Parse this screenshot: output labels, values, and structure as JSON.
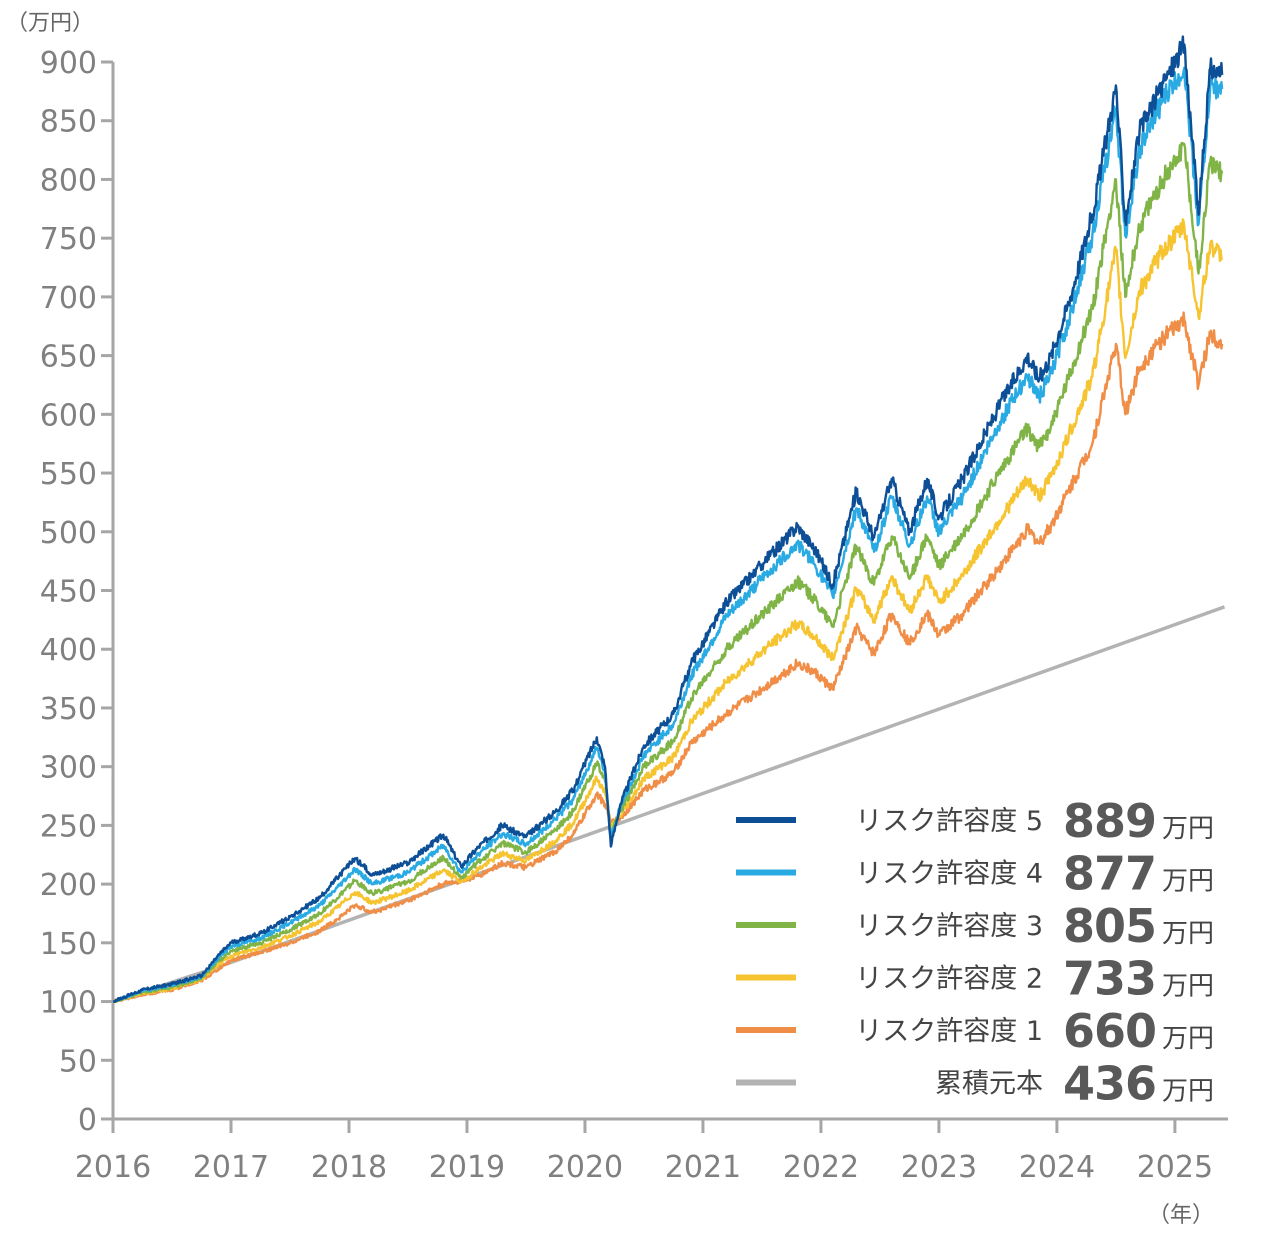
{
  "chart_data": {
    "type": "line",
    "y_unit": "（万円）",
    "x_unit": "（年）",
    "ylim": [
      0,
      900
    ],
    "xlim": [
      2016,
      2025.45
    ],
    "y_ticks": [
      0,
      50,
      100,
      150,
      200,
      250,
      300,
      350,
      400,
      450,
      500,
      550,
      600,
      650,
      700,
      750,
      800,
      850,
      900
    ],
    "x_ticks": [
      2016,
      2017,
      2018,
      2019,
      2020,
      2021,
      2022,
      2023,
      2024,
      2025
    ],
    "grid": false,
    "legend_position": "bottom-right",
    "value_unit": "万円",
    "series": [
      {
        "name": "リスク許容度 5",
        "final_value": "889",
        "color": "#0d4f96",
        "points": [
          [
            2016.0,
            100
          ],
          [
            2016.25,
            110
          ],
          [
            2016.5,
            115
          ],
          [
            2016.75,
            122
          ],
          [
            2016.9,
            140
          ],
          [
            2017.0,
            150
          ],
          [
            2017.25,
            158
          ],
          [
            2017.5,
            172
          ],
          [
            2017.75,
            188
          ],
          [
            2017.9,
            205
          ],
          [
            2018.05,
            222
          ],
          [
            2018.2,
            208
          ],
          [
            2018.5,
            218
          ],
          [
            2018.8,
            242
          ],
          [
            2018.95,
            215
          ],
          [
            2019.1,
            232
          ],
          [
            2019.3,
            250
          ],
          [
            2019.5,
            240
          ],
          [
            2019.75,
            262
          ],
          [
            2019.9,
            280
          ],
          [
            2020.1,
            325
          ],
          [
            2020.17,
            300
          ],
          [
            2020.22,
            232
          ],
          [
            2020.3,
            268
          ],
          [
            2020.5,
            318
          ],
          [
            2020.75,
            345
          ],
          [
            2020.9,
            388
          ],
          [
            2021.2,
            440
          ],
          [
            2021.5,
            472
          ],
          [
            2021.8,
            505
          ],
          [
            2021.95,
            485
          ],
          [
            2022.1,
            455
          ],
          [
            2022.3,
            535
          ],
          [
            2022.45,
            495
          ],
          [
            2022.6,
            545
          ],
          [
            2022.75,
            500
          ],
          [
            2022.9,
            545
          ],
          [
            2023.0,
            512
          ],
          [
            2023.2,
            545
          ],
          [
            2023.5,
            605
          ],
          [
            2023.75,
            650
          ],
          [
            2023.85,
            630
          ],
          [
            2023.95,
            650
          ],
          [
            2024.1,
            695
          ],
          [
            2024.3,
            770
          ],
          [
            2024.5,
            880
          ],
          [
            2024.58,
            765
          ],
          [
            2024.7,
            840
          ],
          [
            2024.9,
            882
          ],
          [
            2025.08,
            915
          ],
          [
            2025.2,
            770
          ],
          [
            2025.3,
            895
          ],
          [
            2025.4,
            889
          ]
        ]
      },
      {
        "name": "リスク許容度 4",
        "final_value": "877",
        "color": "#2aaae2",
        "points": [
          [
            2016.0,
            100
          ],
          [
            2016.25,
            109
          ],
          [
            2016.5,
            114
          ],
          [
            2016.75,
            121
          ],
          [
            2016.9,
            138
          ],
          [
            2017.0,
            147
          ],
          [
            2017.25,
            154
          ],
          [
            2017.5,
            167
          ],
          [
            2017.75,
            182
          ],
          [
            2017.9,
            197
          ],
          [
            2018.05,
            213
          ],
          [
            2018.2,
            200
          ],
          [
            2018.5,
            210
          ],
          [
            2018.8,
            233
          ],
          [
            2018.95,
            210
          ],
          [
            2019.1,
            226
          ],
          [
            2019.3,
            243
          ],
          [
            2019.5,
            234
          ],
          [
            2019.75,
            255
          ],
          [
            2019.9,
            272
          ],
          [
            2020.1,
            316
          ],
          [
            2020.17,
            295
          ],
          [
            2020.22,
            238
          ],
          [
            2020.3,
            266
          ],
          [
            2020.5,
            310
          ],
          [
            2020.75,
            336
          ],
          [
            2020.9,
            377
          ],
          [
            2021.2,
            428
          ],
          [
            2021.5,
            460
          ],
          [
            2021.8,
            490
          ],
          [
            2021.95,
            472
          ],
          [
            2022.1,
            445
          ],
          [
            2022.3,
            520
          ],
          [
            2022.45,
            483
          ],
          [
            2022.6,
            530
          ],
          [
            2022.75,
            488
          ],
          [
            2022.9,
            530
          ],
          [
            2023.0,
            500
          ],
          [
            2023.2,
            530
          ],
          [
            2023.5,
            590
          ],
          [
            2023.75,
            633
          ],
          [
            2023.85,
            615
          ],
          [
            2023.95,
            635
          ],
          [
            2024.1,
            680
          ],
          [
            2024.3,
            752
          ],
          [
            2024.5,
            860
          ],
          [
            2024.58,
            752
          ],
          [
            2024.7,
            825
          ],
          [
            2024.9,
            868
          ],
          [
            2025.08,
            895
          ],
          [
            2025.2,
            762
          ],
          [
            2025.3,
            880
          ],
          [
            2025.4,
            877
          ]
        ]
      },
      {
        "name": "リスク許容度 3",
        "final_value": "805",
        "color": "#80b446",
        "points": [
          [
            2016.0,
            100
          ],
          [
            2016.25,
            108
          ],
          [
            2016.5,
            112
          ],
          [
            2016.75,
            120
          ],
          [
            2016.9,
            135
          ],
          [
            2017.0,
            143
          ],
          [
            2017.25,
            150
          ],
          [
            2017.5,
            161
          ],
          [
            2017.75,
            175
          ],
          [
            2017.9,
            188
          ],
          [
            2018.05,
            203
          ],
          [
            2018.2,
            192
          ],
          [
            2018.5,
            202
          ],
          [
            2018.8,
            223
          ],
          [
            2018.95,
            205
          ],
          [
            2019.1,
            219
          ],
          [
            2019.3,
            235
          ],
          [
            2019.5,
            227
          ],
          [
            2019.75,
            246
          ],
          [
            2019.9,
            262
          ],
          [
            2020.1,
            303
          ],
          [
            2020.17,
            288
          ],
          [
            2020.22,
            244
          ],
          [
            2020.3,
            262
          ],
          [
            2020.5,
            300
          ],
          [
            2020.75,
            322
          ],
          [
            2020.9,
            358
          ],
          [
            2021.2,
            400
          ],
          [
            2021.5,
            430
          ],
          [
            2021.8,
            458
          ],
          [
            2021.95,
            442
          ],
          [
            2022.1,
            420
          ],
          [
            2022.3,
            488
          ],
          [
            2022.45,
            455
          ],
          [
            2022.6,
            496
          ],
          [
            2022.75,
            460
          ],
          [
            2022.9,
            496
          ],
          [
            2023.0,
            470
          ],
          [
            2023.2,
            497
          ],
          [
            2023.5,
            548
          ],
          [
            2023.75,
            588
          ],
          [
            2023.85,
            572
          ],
          [
            2023.95,
            590
          ],
          [
            2024.1,
            630
          ],
          [
            2024.3,
            690
          ],
          [
            2024.5,
            800
          ],
          [
            2024.58,
            700
          ],
          [
            2024.7,
            760
          ],
          [
            2024.9,
            800
          ],
          [
            2025.08,
            830
          ],
          [
            2025.2,
            720
          ],
          [
            2025.3,
            815
          ],
          [
            2025.4,
            805
          ]
        ]
      },
      {
        "name": "リスク許容度 2",
        "final_value": "733",
        "color": "#f6c431",
        "points": [
          [
            2016.0,
            100
          ],
          [
            2016.25,
            107
          ],
          [
            2016.5,
            111
          ],
          [
            2016.75,
            119
          ],
          [
            2016.9,
            132
          ],
          [
            2017.0,
            139
          ],
          [
            2017.25,
            146
          ],
          [
            2017.5,
            156
          ],
          [
            2017.75,
            168
          ],
          [
            2017.9,
            180
          ],
          [
            2018.05,
            193
          ],
          [
            2018.2,
            184
          ],
          [
            2018.5,
            194
          ],
          [
            2018.8,
            212
          ],
          [
            2018.95,
            202
          ],
          [
            2019.1,
            213
          ],
          [
            2019.3,
            226
          ],
          [
            2019.5,
            220
          ],
          [
            2019.75,
            237
          ],
          [
            2019.9,
            252
          ],
          [
            2020.1,
            290
          ],
          [
            2020.17,
            278
          ],
          [
            2020.22,
            248
          ],
          [
            2020.3,
            258
          ],
          [
            2020.5,
            290
          ],
          [
            2020.75,
            308
          ],
          [
            2020.9,
            338
          ],
          [
            2021.2,
            372
          ],
          [
            2021.5,
            398
          ],
          [
            2021.8,
            422
          ],
          [
            2021.95,
            410
          ],
          [
            2022.1,
            392
          ],
          [
            2022.3,
            452
          ],
          [
            2022.45,
            425
          ],
          [
            2022.6,
            462
          ],
          [
            2022.75,
            432
          ],
          [
            2022.9,
            462
          ],
          [
            2023.0,
            440
          ],
          [
            2023.2,
            463
          ],
          [
            2023.5,
            508
          ],
          [
            2023.75,
            545
          ],
          [
            2023.85,
            530
          ],
          [
            2023.95,
            547
          ],
          [
            2024.1,
            582
          ],
          [
            2024.3,
            632
          ],
          [
            2024.5,
            740
          ],
          [
            2024.58,
            648
          ],
          [
            2024.7,
            705
          ],
          [
            2024.9,
            740
          ],
          [
            2025.08,
            760
          ],
          [
            2025.2,
            683
          ],
          [
            2025.3,
            745
          ],
          [
            2025.4,
            733
          ]
        ]
      },
      {
        "name": "リスク許容度 1",
        "final_value": "660",
        "color": "#f08e47",
        "points": [
          [
            2016.0,
            100
          ],
          [
            2016.25,
            106
          ],
          [
            2016.5,
            110
          ],
          [
            2016.75,
            118
          ],
          [
            2016.9,
            128
          ],
          [
            2017.0,
            135
          ],
          [
            2017.25,
            142
          ],
          [
            2017.5,
            150
          ],
          [
            2017.75,
            160
          ],
          [
            2017.9,
            170
          ],
          [
            2018.05,
            182
          ],
          [
            2018.2,
            176
          ],
          [
            2018.5,
            186
          ],
          [
            2018.8,
            200
          ],
          [
            2018.95,
            203
          ],
          [
            2019.1,
            207
          ],
          [
            2019.3,
            218
          ],
          [
            2019.5,
            214
          ],
          [
            2019.75,
            228
          ],
          [
            2019.9,
            242
          ],
          [
            2020.1,
            277
          ],
          [
            2020.17,
            268
          ],
          [
            2020.22,
            252
          ],
          [
            2020.3,
            256
          ],
          [
            2020.5,
            280
          ],
          [
            2020.75,
            295
          ],
          [
            2020.9,
            320
          ],
          [
            2021.2,
            345
          ],
          [
            2021.5,
            366
          ],
          [
            2021.8,
            388
          ],
          [
            2021.95,
            380
          ],
          [
            2022.1,
            366
          ],
          [
            2022.3,
            418
          ],
          [
            2022.45,
            396
          ],
          [
            2022.6,
            430
          ],
          [
            2022.75,
            405
          ],
          [
            2022.9,
            430
          ],
          [
            2023.0,
            412
          ],
          [
            2023.2,
            430
          ],
          [
            2023.5,
            468
          ],
          [
            2023.75,
            502
          ],
          [
            2023.85,
            490
          ],
          [
            2023.95,
            505
          ],
          [
            2024.1,
            535
          ],
          [
            2024.3,
            575
          ],
          [
            2024.5,
            660
          ],
          [
            2024.58,
            600
          ],
          [
            2024.7,
            640
          ],
          [
            2024.9,
            665
          ],
          [
            2025.08,
            680
          ],
          [
            2025.2,
            625
          ],
          [
            2025.3,
            670
          ],
          [
            2025.4,
            660
          ]
        ]
      },
      {
        "name": "累積元本",
        "final_value": "436",
        "color": "#b3b3b3",
        "points": [
          [
            2016.0,
            100
          ],
          [
            2016.85,
            128
          ],
          [
            2025.42,
            436
          ]
        ]
      }
    ]
  }
}
